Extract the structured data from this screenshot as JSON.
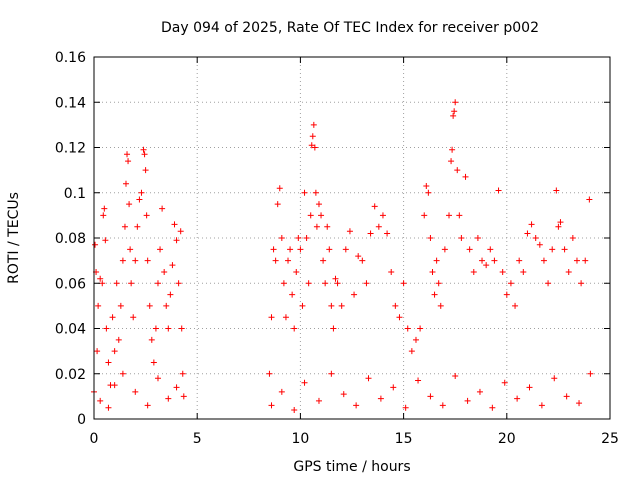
{
  "chart_data": {
    "type": "scatter",
    "title": "Day 094 of 2025, Rate Of TEC Index for receiver p002",
    "xlabel": "GPS time / hours",
    "ylabel": "ROTI / TECUs",
    "xlim": [
      0,
      25
    ],
    "ylim": [
      0,
      0.16
    ],
    "xticks": [
      0,
      5,
      10,
      15,
      20,
      25
    ],
    "xtick_labels": [
      "0",
      "5",
      "10",
      "15",
      "20",
      "25"
    ],
    "yticks": [
      0,
      0.02,
      0.04,
      0.06,
      0.08,
      0.1,
      0.12,
      0.14,
      0.16
    ],
    "ytick_labels": [
      "0",
      "0.02",
      "0.04",
      "0.06",
      "0.08",
      "0.1",
      "0.12",
      "0.14",
      "0.16"
    ],
    "grid": true,
    "marker": "+",
    "color": "#ff0000",
    "series": [
      {
        "name": "ROTI",
        "points": [
          [
            0.0,
            0.012
          ],
          [
            0.05,
            0.077
          ],
          [
            0.1,
            0.065
          ],
          [
            0.15,
            0.03
          ],
          [
            0.2,
            0.05
          ],
          [
            0.3,
            0.062
          ],
          [
            0.4,
            0.06
          ],
          [
            0.45,
            0.09
          ],
          [
            0.5,
            0.093
          ],
          [
            0.55,
            0.079
          ],
          [
            0.6,
            0.04
          ],
          [
            0.7,
            0.025
          ],
          [
            0.8,
            0.015
          ],
          [
            0.9,
            0.045
          ],
          [
            1.0,
            0.03
          ],
          [
            1.1,
            0.06
          ],
          [
            1.2,
            0.035
          ],
          [
            1.3,
            0.05
          ],
          [
            1.4,
            0.07
          ],
          [
            1.5,
            0.085
          ],
          [
            1.55,
            0.104
          ],
          [
            1.6,
            0.117
          ],
          [
            1.65,
            0.114
          ],
          [
            1.7,
            0.095
          ],
          [
            1.75,
            0.075
          ],
          [
            1.8,
            0.06
          ],
          [
            1.9,
            0.045
          ],
          [
            2.0,
            0.07
          ],
          [
            2.1,
            0.085
          ],
          [
            2.2,
            0.097
          ],
          [
            2.3,
            0.1
          ],
          [
            2.4,
            0.119
          ],
          [
            2.45,
            0.117
          ],
          [
            2.5,
            0.11
          ],
          [
            2.55,
            0.09
          ],
          [
            2.6,
            0.07
          ],
          [
            2.7,
            0.05
          ],
          [
            2.8,
            0.035
          ],
          [
            2.9,
            0.025
          ],
          [
            3.0,
            0.04
          ],
          [
            3.1,
            0.06
          ],
          [
            3.2,
            0.075
          ],
          [
            3.3,
            0.093
          ],
          [
            3.4,
            0.065
          ],
          [
            3.5,
            0.05
          ],
          [
            3.6,
            0.04
          ],
          [
            3.7,
            0.055
          ],
          [
            3.8,
            0.068
          ],
          [
            3.9,
            0.086
          ],
          [
            4.0,
            0.079
          ],
          [
            4.1,
            0.06
          ],
          [
            4.2,
            0.083
          ],
          [
            4.25,
            0.04
          ],
          [
            4.3,
            0.02
          ],
          [
            4.35,
            0.01
          ],
          [
            8.5,
            0.02
          ],
          [
            8.6,
            0.045
          ],
          [
            8.7,
            0.075
          ],
          [
            8.8,
            0.07
          ],
          [
            8.9,
            0.095
          ],
          [
            9.0,
            0.102
          ],
          [
            9.1,
            0.08
          ],
          [
            9.2,
            0.06
          ],
          [
            9.3,
            0.045
          ],
          [
            9.4,
            0.07
          ],
          [
            9.5,
            0.075
          ],
          [
            9.6,
            0.055
          ],
          [
            9.7,
            0.04
          ],
          [
            9.8,
            0.065
          ],
          [
            9.9,
            0.08
          ],
          [
            10.0,
            0.075
          ],
          [
            10.1,
            0.05
          ],
          [
            10.2,
            0.1
          ],
          [
            10.3,
            0.08
          ],
          [
            10.4,
            0.06
          ],
          [
            10.5,
            0.09
          ],
          [
            10.55,
            0.121
          ],
          [
            10.6,
            0.125
          ],
          [
            10.65,
            0.13
          ],
          [
            10.7,
            0.12
          ],
          [
            10.75,
            0.1
          ],
          [
            10.8,
            0.085
          ],
          [
            10.9,
            0.095
          ],
          [
            11.0,
            0.09
          ],
          [
            11.1,
            0.07
          ],
          [
            11.2,
            0.06
          ],
          [
            11.3,
            0.085
          ],
          [
            11.4,
            0.075
          ],
          [
            11.5,
            0.05
          ],
          [
            11.6,
            0.04
          ],
          [
            11.7,
            0.062
          ],
          [
            11.8,
            0.06
          ],
          [
            12.0,
            0.05
          ],
          [
            12.2,
            0.075
          ],
          [
            12.4,
            0.083
          ],
          [
            12.6,
            0.055
          ],
          [
            12.8,
            0.072
          ],
          [
            13.0,
            0.07
          ],
          [
            13.2,
            0.06
          ],
          [
            13.4,
            0.082
          ],
          [
            13.6,
            0.094
          ],
          [
            13.8,
            0.085
          ],
          [
            14.0,
            0.09
          ],
          [
            14.2,
            0.082
          ],
          [
            14.4,
            0.065
          ],
          [
            14.6,
            0.05
          ],
          [
            14.8,
            0.045
          ],
          [
            15.0,
            0.06
          ],
          [
            15.2,
            0.04
          ],
          [
            15.4,
            0.03
          ],
          [
            15.6,
            0.035
          ],
          [
            15.8,
            0.04
          ],
          [
            16.0,
            0.09
          ],
          [
            16.1,
            0.103
          ],
          [
            16.2,
            0.1
          ],
          [
            16.3,
            0.08
          ],
          [
            16.4,
            0.065
          ],
          [
            16.5,
            0.055
          ],
          [
            16.6,
            0.07
          ],
          [
            16.7,
            0.06
          ],
          [
            16.8,
            0.05
          ],
          [
            17.0,
            0.075
          ],
          [
            17.2,
            0.09
          ],
          [
            17.3,
            0.114
          ],
          [
            17.35,
            0.119
          ],
          [
            17.4,
            0.134
          ],
          [
            17.45,
            0.136
          ],
          [
            17.5,
            0.14
          ],
          [
            17.6,
            0.11
          ],
          [
            17.7,
            0.09
          ],
          [
            17.8,
            0.08
          ],
          [
            18.0,
            0.107
          ],
          [
            18.2,
            0.075
          ],
          [
            18.4,
            0.065
          ],
          [
            18.6,
            0.08
          ],
          [
            18.8,
            0.07
          ],
          [
            19.0,
            0.068
          ],
          [
            19.2,
            0.075
          ],
          [
            19.4,
            0.07
          ],
          [
            19.6,
            0.101
          ],
          [
            19.8,
            0.065
          ],
          [
            20.0,
            0.055
          ],
          [
            20.2,
            0.06
          ],
          [
            20.4,
            0.05
          ],
          [
            20.6,
            0.07
          ],
          [
            20.8,
            0.065
          ],
          [
            21.0,
            0.082
          ],
          [
            21.2,
            0.086
          ],
          [
            21.4,
            0.08
          ],
          [
            21.6,
            0.077
          ],
          [
            21.8,
            0.07
          ],
          [
            22.0,
            0.06
          ],
          [
            22.2,
            0.075
          ],
          [
            22.4,
            0.101
          ],
          [
            22.5,
            0.085
          ],
          [
            22.6,
            0.087
          ],
          [
            22.8,
            0.075
          ],
          [
            23.0,
            0.065
          ],
          [
            23.2,
            0.08
          ],
          [
            23.4,
            0.07
          ],
          [
            23.6,
            0.06
          ],
          [
            23.8,
            0.07
          ],
          [
            24.0,
            0.097
          ],
          [
            24.05,
            0.02
          ],
          [
            0.3,
            0.008
          ],
          [
            0.7,
            0.005
          ],
          [
            1.0,
            0.015
          ],
          [
            1.4,
            0.02
          ],
          [
            2.0,
            0.012
          ],
          [
            2.6,
            0.006
          ],
          [
            3.1,
            0.018
          ],
          [
            3.6,
            0.009
          ],
          [
            4.0,
            0.014
          ],
          [
            8.6,
            0.006
          ],
          [
            9.1,
            0.012
          ],
          [
            9.7,
            0.004
          ],
          [
            10.2,
            0.016
          ],
          [
            10.9,
            0.008
          ],
          [
            11.5,
            0.02
          ],
          [
            12.1,
            0.011
          ],
          [
            12.7,
            0.006
          ],
          [
            13.3,
            0.018
          ],
          [
            13.9,
            0.009
          ],
          [
            14.5,
            0.014
          ],
          [
            15.1,
            0.005
          ],
          [
            15.7,
            0.017
          ],
          [
            16.3,
            0.01
          ],
          [
            16.9,
            0.006
          ],
          [
            17.5,
            0.019
          ],
          [
            18.1,
            0.008
          ],
          [
            18.7,
            0.012
          ],
          [
            19.3,
            0.005
          ],
          [
            19.9,
            0.016
          ],
          [
            20.5,
            0.009
          ],
          [
            21.1,
            0.014
          ],
          [
            21.7,
            0.006
          ],
          [
            22.3,
            0.018
          ],
          [
            22.9,
            0.01
          ],
          [
            23.5,
            0.007
          ]
        ]
      }
    ]
  }
}
